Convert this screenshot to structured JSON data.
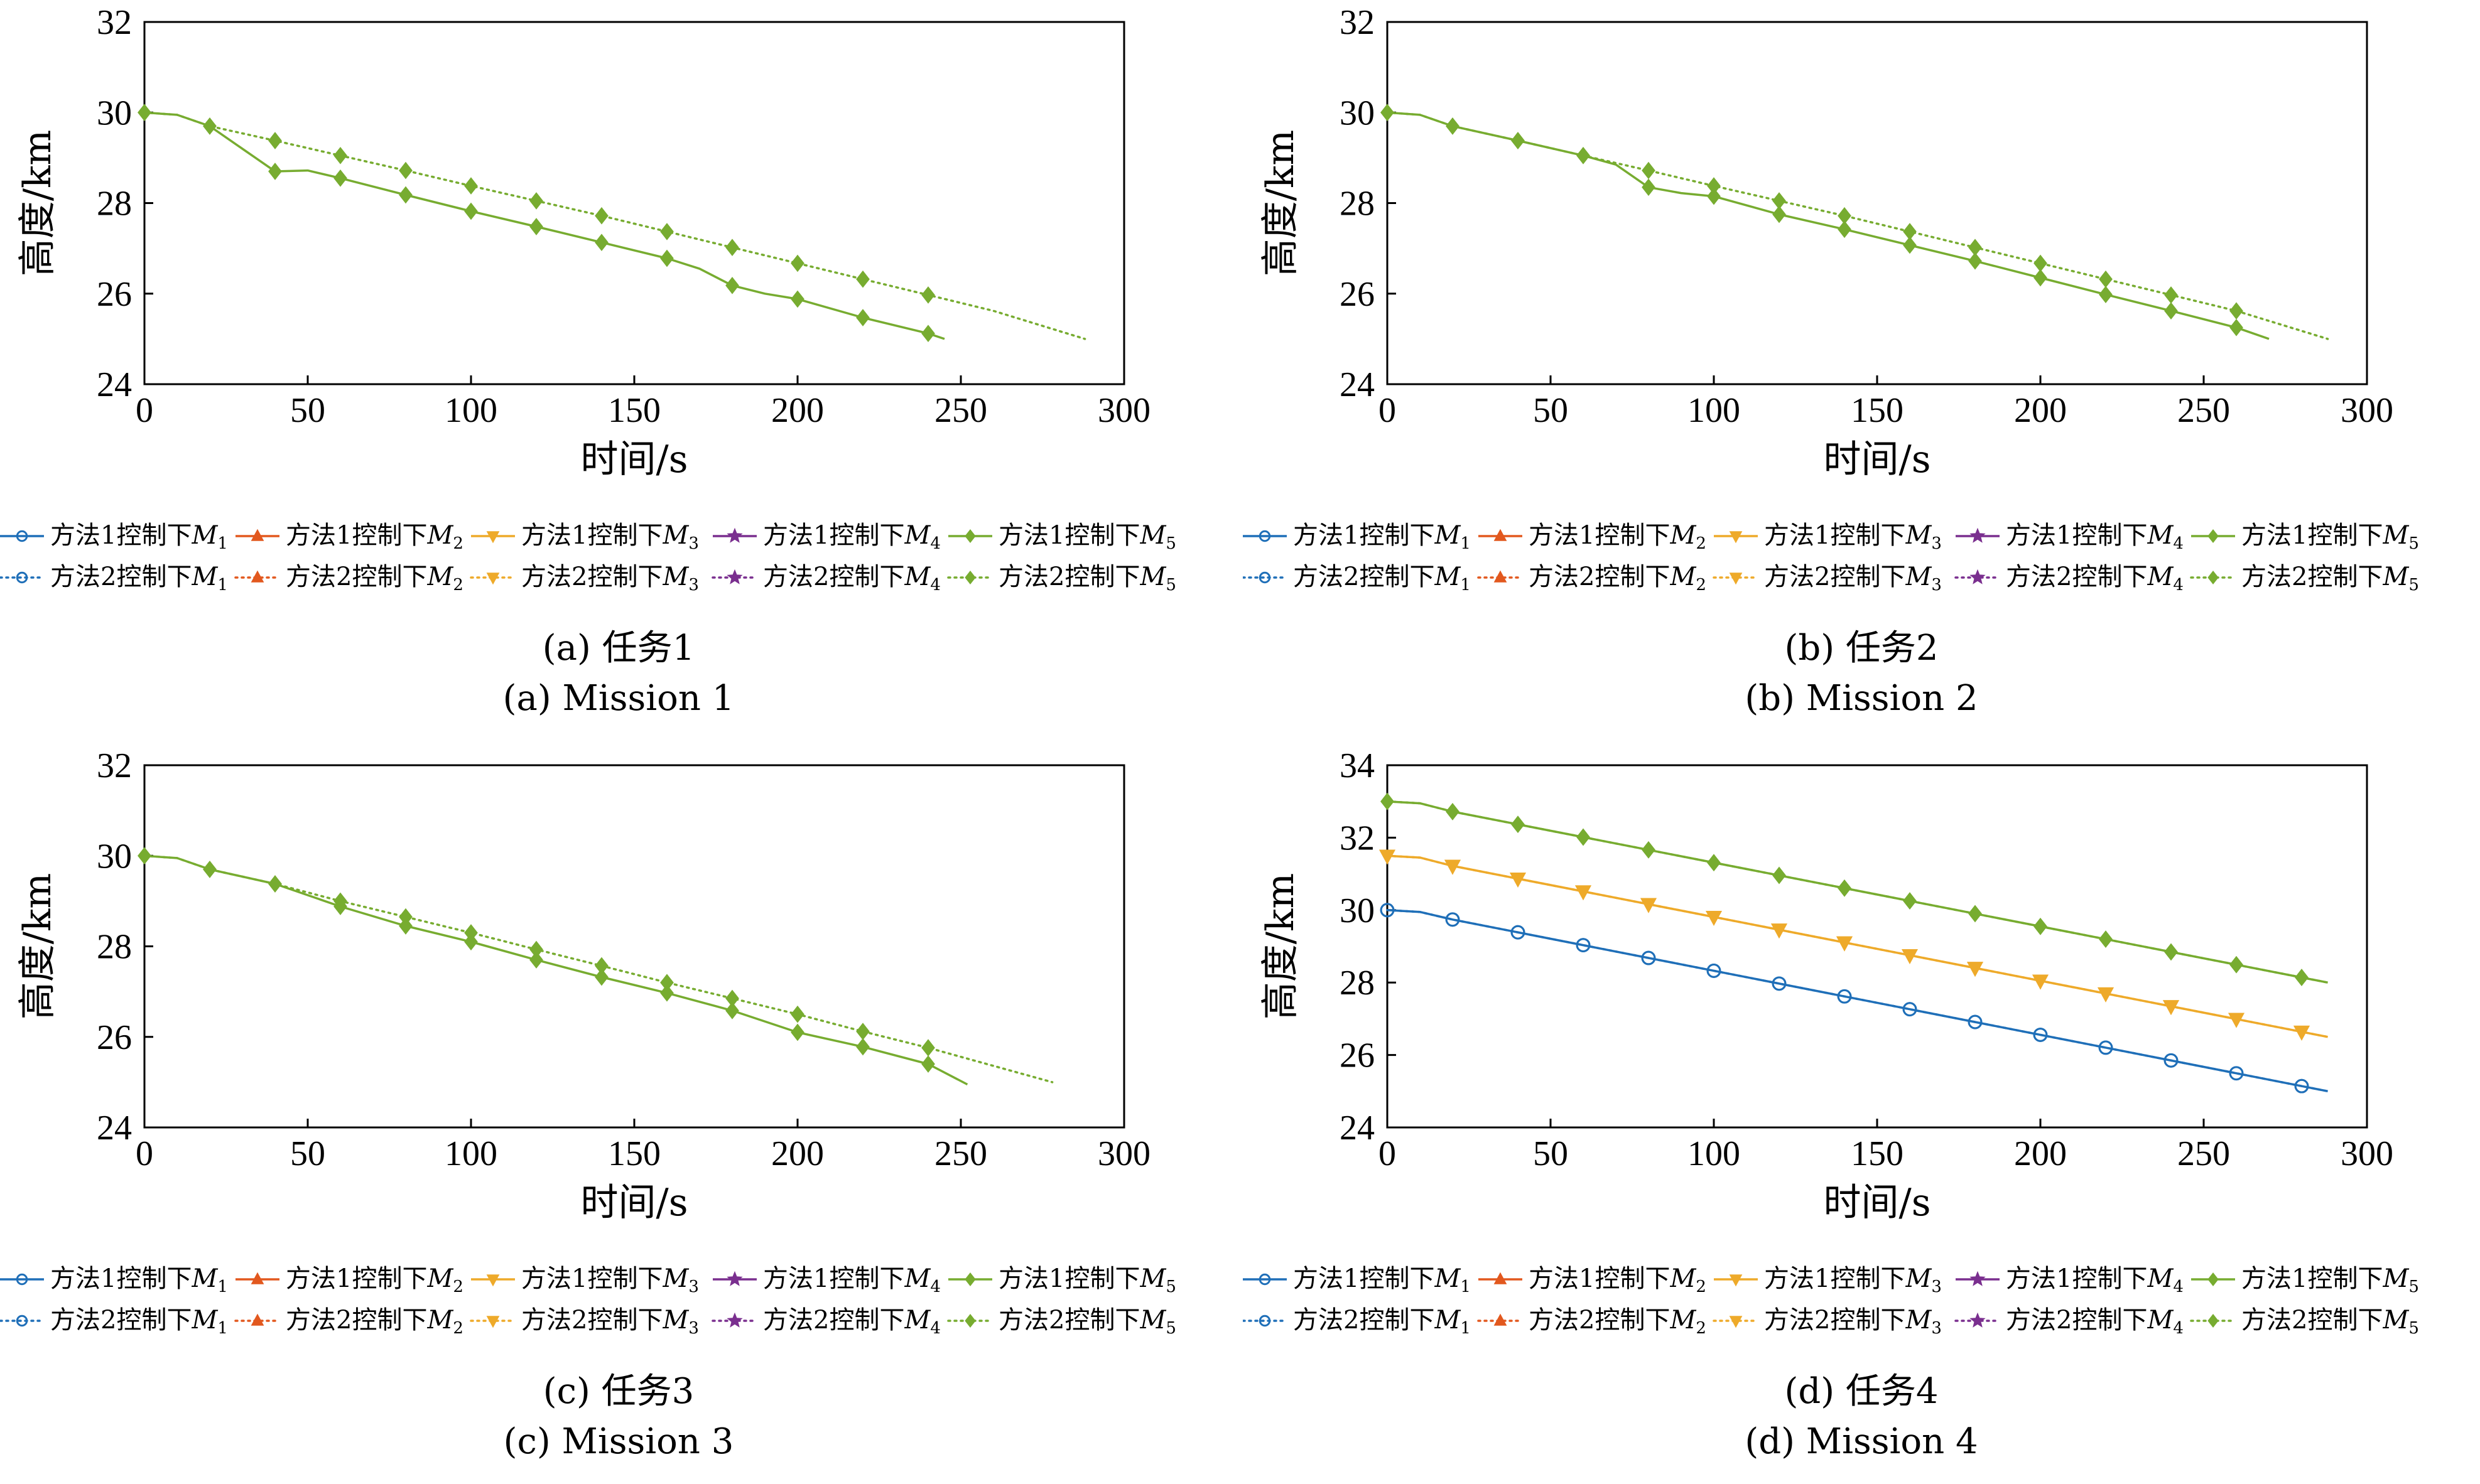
{
  "legend_labels": [
    "方法1控制下M1",
    "方法1控制下M2",
    "方法1控制下M3",
    "方法1控制下M4",
    "方法1控制下M5",
    "方法2控制下M1",
    "方法2控制下M2",
    "方法2控制下M3",
    "方法2控制下M4",
    "方法2控制下M5"
  ],
  "legend_parts": [
    {
      "prefix": "方法1控制下",
      "sym": "M",
      "sub": "1"
    },
    {
      "prefix": "方法1控制下",
      "sym": "M",
      "sub": "2"
    },
    {
      "prefix": "方法1控制下",
      "sym": "M",
      "sub": "3"
    },
    {
      "prefix": "方法1控制下",
      "sym": "M",
      "sub": "4"
    },
    {
      "prefix": "方法1控制下",
      "sym": "M",
      "sub": "5"
    },
    {
      "prefix": "方法2控制下",
      "sym": "M",
      "sub": "1"
    },
    {
      "prefix": "方法2控制下",
      "sym": "M",
      "sub": "2"
    },
    {
      "prefix": "方法2控制下",
      "sym": "M",
      "sub": "3"
    },
    {
      "prefix": "方法2控制下",
      "sym": "M",
      "sub": "4"
    },
    {
      "prefix": "方法2控制下",
      "sym": "M",
      "sub": "5"
    }
  ],
  "series_colors": [
    "#1f6fb8",
    "#e2581e",
    "#eeaa2a",
    "#7a2f8f",
    "#77ac30"
  ],
  "series_markers": [
    "circle",
    "triangle-up",
    "triangle-down",
    "star",
    "diamond"
  ],
  "series_line_styles": [
    "solid",
    "dotted"
  ],
  "panels": [
    {
      "caption_cn": "(a) 任务1",
      "caption_en": "(a) Mission 1"
    },
    {
      "caption_cn": "(b) 任务2",
      "caption_en": "(b) Mission 2"
    },
    {
      "caption_cn": "(c) 任务3",
      "caption_en": "(c) Mission 3"
    },
    {
      "caption_cn": "(d) 任务4",
      "caption_en": "(d) Mission 4"
    }
  ],
  "chart_data": [
    {
      "type": "line",
      "xlabel": "时间/s",
      "ylabel": "高度/km",
      "xlim": [
        0,
        300
      ],
      "ylim": [
        24,
        32
      ],
      "xticks": [
        0,
        50,
        100,
        150,
        200,
        250,
        300
      ],
      "yticks": [
        24,
        26,
        28,
        30,
        32
      ],
      "series": [
        {
          "name": "方法1控制下M5",
          "color": "#77ac30",
          "style": "solid",
          "marker": "diamond",
          "x": [
            0,
            10,
            20,
            30,
            40,
            50,
            60,
            80,
            100,
            120,
            140,
            160,
            170,
            180,
            190,
            200,
            220,
            240,
            245
          ],
          "y": [
            30.0,
            29.95,
            29.7,
            29.2,
            28.7,
            28.72,
            28.55,
            28.18,
            27.82,
            27.48,
            27.13,
            26.78,
            26.55,
            26.18,
            26.0,
            25.88,
            25.47,
            25.12,
            25.0
          ],
          "marker_x": [
            0,
            20,
            40,
            60,
            80,
            100,
            120,
            140,
            160,
            180,
            200,
            220,
            240
          ]
        },
        {
          "name": "方法2控制下M5",
          "color": "#77ac30",
          "style": "dotted",
          "marker": "diamond",
          "x": [
            0,
            10,
            20,
            40,
            60,
            80,
            100,
            120,
            140,
            160,
            180,
            200,
            220,
            240,
            260,
            288
          ],
          "y": [
            30.0,
            29.95,
            29.7,
            29.38,
            29.05,
            28.72,
            28.38,
            28.05,
            27.72,
            27.37,
            27.02,
            26.67,
            26.32,
            25.97,
            25.62,
            25.0
          ],
          "marker_x": [
            0,
            20,
            40,
            60,
            80,
            100,
            120,
            140,
            160,
            180,
            200,
            220,
            240
          ]
        }
      ]
    },
    {
      "type": "line",
      "xlabel": "时间/s",
      "ylabel": "高度/km",
      "xlim": [
        0,
        300
      ],
      "ylim": [
        24,
        32
      ],
      "xticks": [
        0,
        50,
        100,
        150,
        200,
        250,
        300
      ],
      "yticks": [
        24,
        26,
        28,
        30,
        32
      ],
      "series": [
        {
          "name": "方法1控制下M5",
          "color": "#77ac30",
          "style": "solid",
          "marker": "diamond",
          "x": [
            0,
            10,
            20,
            40,
            60,
            70,
            80,
            90,
            100,
            120,
            140,
            160,
            180,
            200,
            220,
            240,
            260,
            270
          ],
          "y": [
            30.0,
            29.95,
            29.7,
            29.38,
            29.05,
            28.85,
            28.35,
            28.22,
            28.15,
            27.75,
            27.42,
            27.07,
            26.72,
            26.35,
            25.98,
            25.62,
            25.25,
            25.0
          ],
          "marker_x": [
            0,
            20,
            40,
            60,
            80,
            100,
            120,
            140,
            160,
            180,
            200,
            220,
            240,
            260
          ]
        },
        {
          "name": "方法2控制下M5",
          "color": "#77ac30",
          "style": "dotted",
          "marker": "diamond",
          "x": [
            0,
            10,
            20,
            40,
            60,
            80,
            100,
            120,
            140,
            160,
            180,
            200,
            220,
            240,
            260,
            288
          ],
          "y": [
            30.0,
            29.95,
            29.7,
            29.38,
            29.05,
            28.72,
            28.38,
            28.05,
            27.72,
            27.37,
            27.02,
            26.67,
            26.32,
            25.97,
            25.62,
            25.0
          ],
          "marker_x": [
            0,
            20,
            40,
            60,
            80,
            100,
            120,
            140,
            160,
            180,
            200,
            220,
            240,
            260
          ]
        }
      ]
    },
    {
      "type": "line",
      "xlabel": "时间/s",
      "ylabel": "高度/km",
      "xlim": [
        0,
        300
      ],
      "ylim": [
        24,
        32
      ],
      "xticks": [
        0,
        50,
        100,
        150,
        200,
        250,
        300
      ],
      "yticks": [
        24,
        26,
        28,
        30,
        32
      ],
      "series": [
        {
          "name": "方法1控制下M5",
          "color": "#77ac30",
          "style": "solid",
          "marker": "diamond",
          "x": [
            0,
            10,
            20,
            40,
            60,
            80,
            100,
            120,
            140,
            160,
            180,
            200,
            220,
            240,
            252
          ],
          "y": [
            30.0,
            29.95,
            29.7,
            29.38,
            28.88,
            28.45,
            28.1,
            27.7,
            27.32,
            26.97,
            26.58,
            26.1,
            25.78,
            25.4,
            24.95
          ],
          "marker_x": [
            0,
            20,
            40,
            60,
            80,
            100,
            120,
            140,
            160,
            180,
            200,
            220,
            240
          ]
        },
        {
          "name": "方法2控制下M5",
          "color": "#77ac30",
          "style": "dotted",
          "marker": "diamond",
          "x": [
            0,
            10,
            20,
            40,
            60,
            80,
            100,
            120,
            140,
            160,
            180,
            200,
            220,
            240,
            278
          ],
          "y": [
            30.0,
            29.95,
            29.7,
            29.38,
            29.0,
            28.65,
            28.3,
            27.93,
            27.57,
            27.2,
            26.85,
            26.5,
            26.12,
            25.76,
            25.0
          ],
          "marker_x": [
            0,
            20,
            40,
            60,
            80,
            100,
            120,
            140,
            160,
            180,
            200,
            220,
            240
          ]
        }
      ]
    },
    {
      "type": "line",
      "xlabel": "时间/s",
      "ylabel": "高度/km",
      "xlim": [
        0,
        300
      ],
      "ylim": [
        24,
        34
      ],
      "xticks": [
        0,
        50,
        100,
        150,
        200,
        250,
        300
      ],
      "yticks": [
        24,
        26,
        28,
        30,
        32,
        34
      ],
      "series": [
        {
          "name": "方法1控制下M1",
          "color": "#1f6fb8",
          "style": "solid",
          "marker": "circle",
          "x": [
            0,
            10,
            20,
            288
          ],
          "y": [
            30.0,
            29.95,
            29.74,
            25.0
          ],
          "marker_x": [
            0,
            20,
            40,
            60,
            80,
            100,
            120,
            140,
            160,
            180,
            200,
            220,
            240,
            260,
            280
          ]
        },
        {
          "name": "方法2控制下M1",
          "color": "#1f6fb8",
          "style": "dotted",
          "marker": "circle",
          "x": [
            0,
            10,
            20,
            288
          ],
          "y": [
            30.0,
            29.95,
            29.74,
            25.0
          ],
          "marker_x": [
            0,
            20,
            40,
            60,
            80,
            100,
            120,
            140,
            160,
            180,
            200,
            220,
            240,
            260,
            280
          ]
        },
        {
          "name": "方法1控制下M3",
          "color": "#eeaa2a",
          "style": "solid",
          "marker": "triangle-down",
          "x": [
            0,
            10,
            20,
            288
          ],
          "y": [
            31.5,
            31.45,
            31.22,
            26.5
          ],
          "marker_x": [
            0,
            20,
            40,
            60,
            80,
            100,
            120,
            140,
            160,
            180,
            200,
            220,
            240,
            260,
            280
          ]
        },
        {
          "name": "方法2控制下M3",
          "color": "#eeaa2a",
          "style": "dotted",
          "marker": "triangle-down",
          "x": [
            0,
            10,
            20,
            288
          ],
          "y": [
            31.5,
            31.45,
            31.22,
            26.5
          ],
          "marker_x": [
            0,
            20,
            40,
            60,
            80,
            100,
            120,
            140,
            160,
            180,
            200,
            220,
            240,
            260,
            280
          ]
        },
        {
          "name": "方法1控制下M5",
          "color": "#77ac30",
          "style": "solid",
          "marker": "diamond",
          "x": [
            0,
            10,
            20,
            288
          ],
          "y": [
            33.0,
            32.95,
            32.72,
            28.0
          ],
          "marker_x": [
            0,
            20,
            40,
            60,
            80,
            100,
            120,
            140,
            160,
            180,
            200,
            220,
            240,
            260,
            280
          ]
        },
        {
          "name": "方法2控制下M5",
          "color": "#77ac30",
          "style": "dotted",
          "marker": "diamond",
          "x": [
            0,
            10,
            20,
            288
          ],
          "y": [
            33.0,
            32.95,
            32.72,
            28.0
          ],
          "marker_x": [
            0,
            20,
            40,
            60,
            80,
            100,
            120,
            140,
            160,
            180,
            200,
            220,
            240,
            260,
            280
          ]
        }
      ]
    }
  ]
}
